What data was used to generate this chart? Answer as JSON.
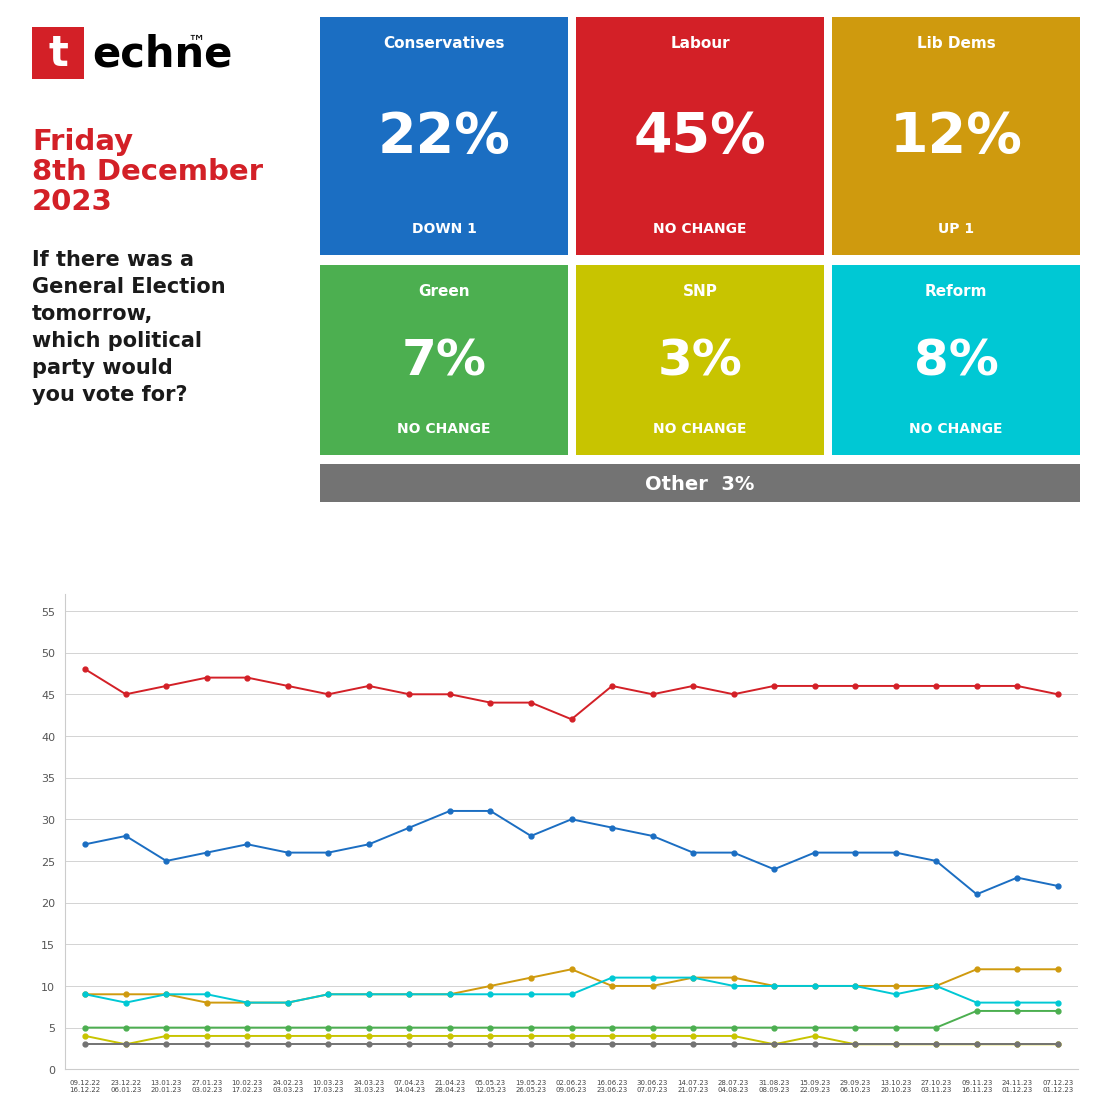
{
  "title_day": "Friday",
  "title_date": "8th December",
  "title_year": "2023",
  "question": "If there was a\nGeneral Election\ntomorrow,\nwhich political\nparty would\nyou vote for?",
  "parties": [
    {
      "name": "Conservatives",
      "pct": "22%",
      "change": "DOWN 1",
      "color": "#1B6EC2",
      "row": 0,
      "col": 0
    },
    {
      "name": "Labour",
      "pct": "45%",
      "change": "NO CHANGE",
      "color": "#D32027",
      "row": 0,
      "col": 1
    },
    {
      "name": "Lib Dems",
      "pct": "12%",
      "change": "UP 1",
      "color": "#CF9A0E",
      "row": 0,
      "col": 2
    },
    {
      "name": "Green",
      "pct": "7%",
      "change": "NO CHANGE",
      "color": "#4CAF50",
      "row": 1,
      "col": 0
    },
    {
      "name": "SNP",
      "pct": "3%",
      "change": "NO CHANGE",
      "color": "#C8C400",
      "row": 1,
      "col": 1
    },
    {
      "name": "Reform",
      "pct": "8%",
      "change": "NO CHANGE",
      "color": "#00C8D4",
      "row": 1,
      "col": 2
    }
  ],
  "other_label": "Other  3%",
  "other_color": "#737373",
  "techne_red": "#D32027",
  "left_red_bar": "#C8292E",
  "bg_color": "#FFFFFF",
  "dates": [
    "09.12.22\n16.12.22",
    "23.12.22\n06.01.23",
    "13.01.23\n20.01.23",
    "27.01.23\n03.02.23",
    "10.02.23\n17.02.23",
    "24.02.23\n03.03.23",
    "10.03.23\n17.03.23",
    "24.03.23\n31.03.23",
    "07.04.23\n14.04.23",
    "21.04.23\n28.04.23",
    "05.05.23\n12.05.23",
    "19.05.23\n26.05.23",
    "02.06.23\n09.06.23",
    "16.06.23\n23.06.23",
    "30.06.23\n07.07.23",
    "14.07.23\n21.07.23",
    "28.07.23\n04.08.23",
    "31.08.23\n08.09.23",
    "15.09.23\n22.09.23",
    "29.09.23\n06.10.23",
    "13.10.23\n20.10.23",
    "27.10.23\n03.11.23",
    "09.11.23\n16.11.23",
    "24.11.23\n01.12.23",
    "07.12.23\n01.12.23"
  ],
  "labour_data": [
    48,
    45,
    46,
    47,
    47,
    46,
    45,
    46,
    45,
    45,
    44,
    44,
    42,
    46,
    45,
    46,
    45,
    46,
    46,
    46,
    46,
    46,
    46,
    46,
    45
  ],
  "con_data": [
    27,
    28,
    25,
    26,
    27,
    26,
    26,
    27,
    29,
    31,
    31,
    28,
    30,
    29,
    28,
    26,
    26,
    24,
    26,
    26,
    26,
    25,
    21,
    23,
    22
  ],
  "libdem_data": [
    9,
    9,
    9,
    8,
    8,
    8,
    9,
    9,
    9,
    9,
    10,
    11,
    12,
    10,
    10,
    11,
    11,
    10,
    10,
    10,
    10,
    10,
    12,
    12,
    12
  ],
  "reform_data": [
    9,
    8,
    9,
    9,
    8,
    8,
    9,
    9,
    9,
    9,
    9,
    9,
    9,
    11,
    11,
    11,
    10,
    10,
    10,
    10,
    9,
    10,
    8,
    8,
    8
  ],
  "green_data": [
    5,
    5,
    5,
    5,
    5,
    5,
    5,
    5,
    5,
    5,
    5,
    5,
    5,
    5,
    5,
    5,
    5,
    5,
    5,
    5,
    5,
    5,
    7,
    7,
    7
  ],
  "snp_data": [
    4,
    3,
    4,
    4,
    4,
    4,
    4,
    4,
    4,
    4,
    4,
    4,
    4,
    4,
    4,
    4,
    4,
    3,
    4,
    3,
    3,
    3,
    3,
    3,
    3
  ],
  "other_data": [
    3,
    3,
    3,
    3,
    3,
    3,
    3,
    3,
    3,
    3,
    3,
    3,
    3,
    3,
    3,
    3,
    3,
    3,
    3,
    3,
    3,
    3,
    3,
    3,
    3
  ],
  "line_colors": {
    "labour": "#D32027",
    "con": "#1B6EC2",
    "libdem": "#CF9A0E",
    "reform": "#00C8D4",
    "green": "#4CAF50",
    "snp": "#C8C400",
    "other": "#737373"
  }
}
